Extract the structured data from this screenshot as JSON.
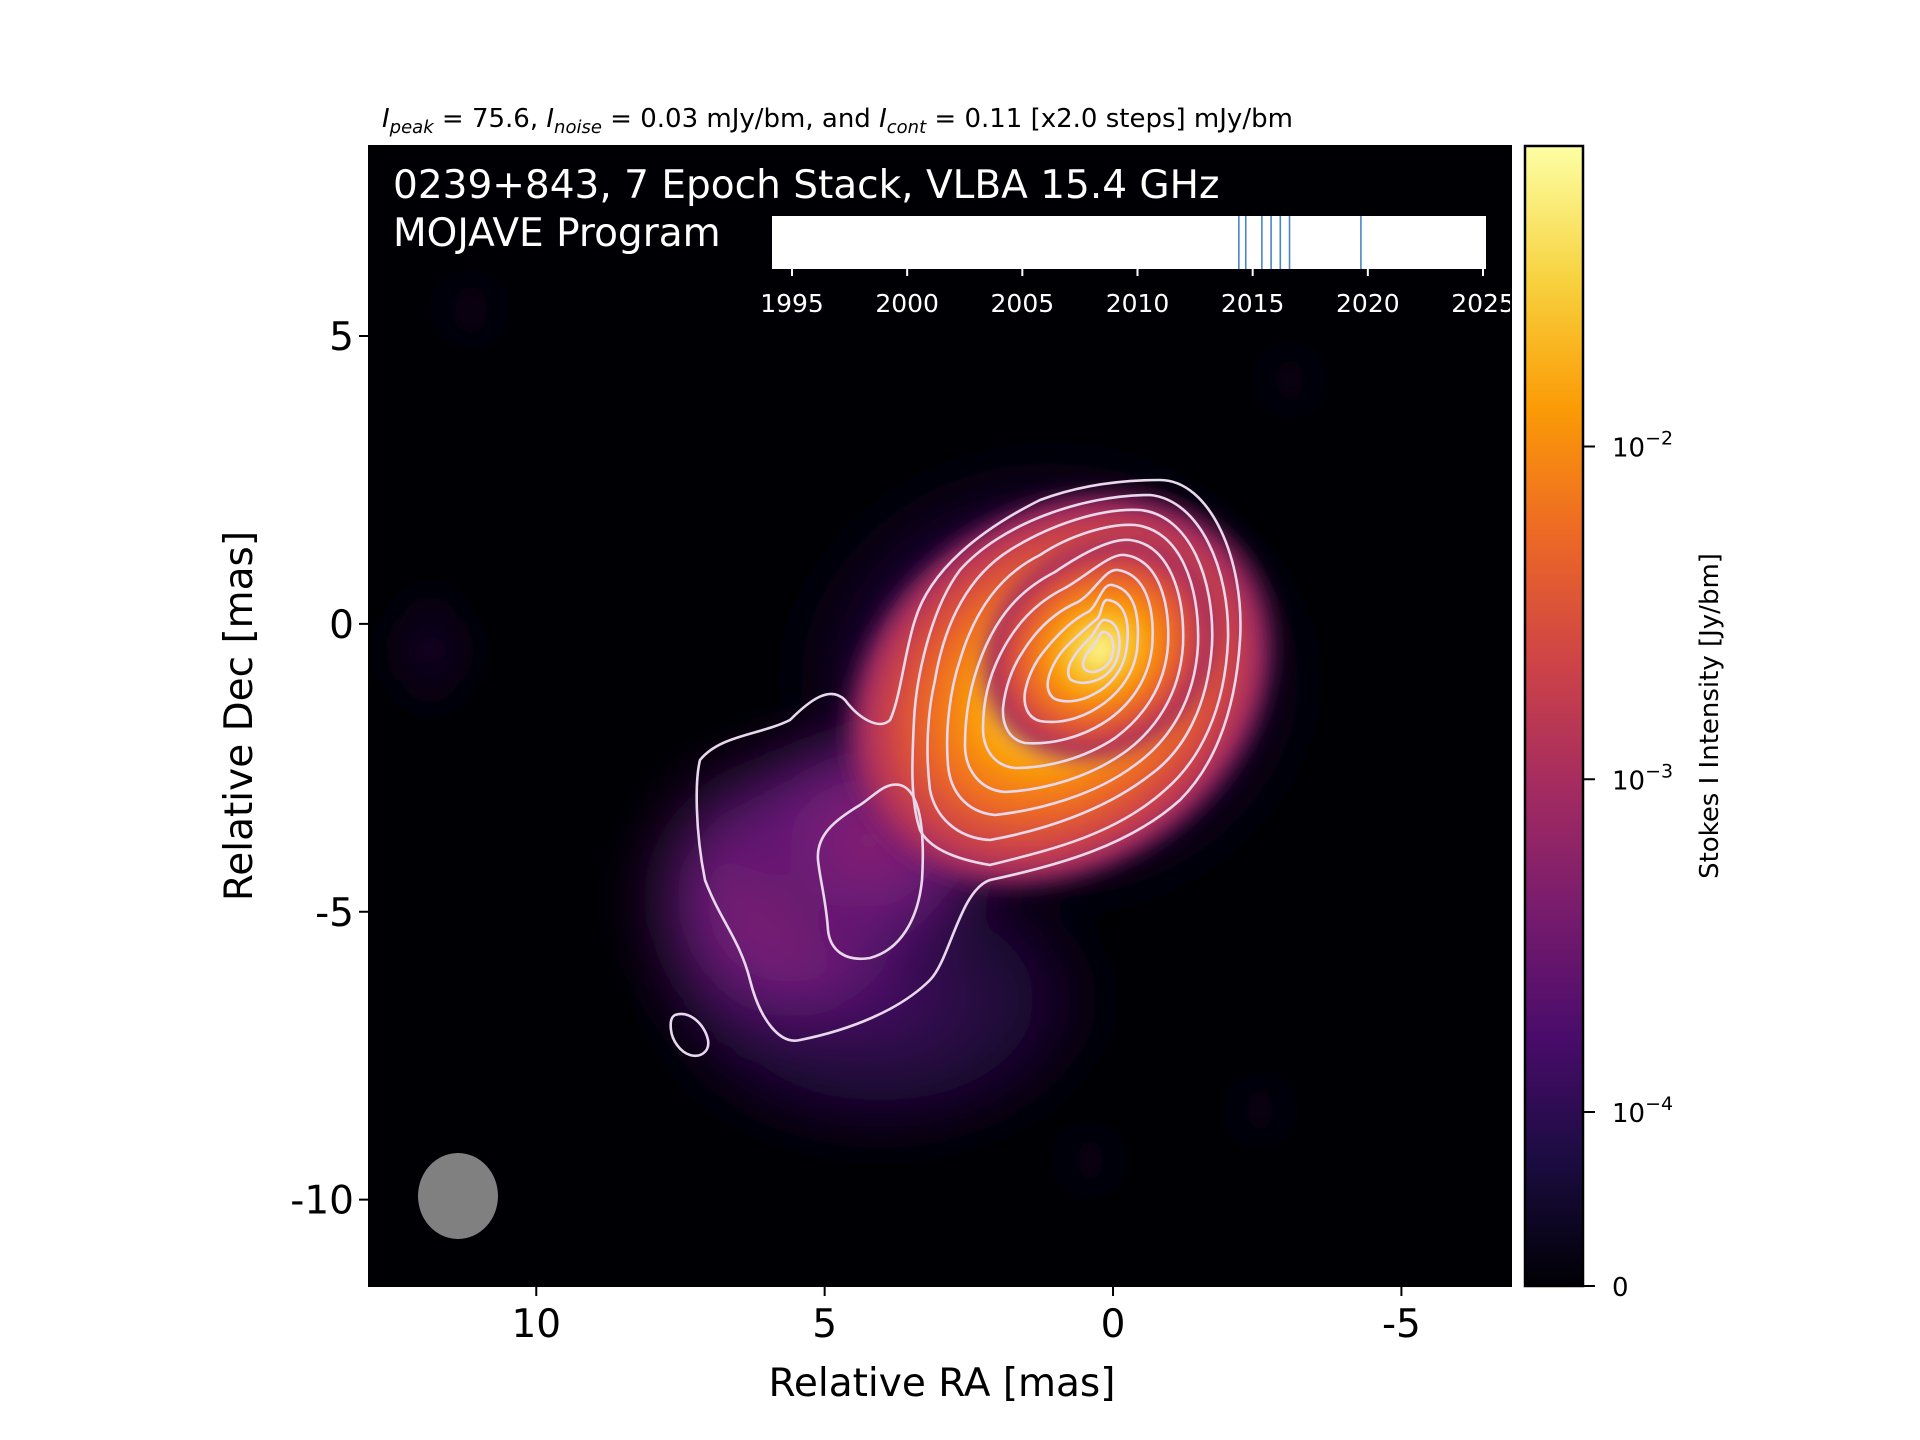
{
  "chart_data": {
    "type": "heatmap",
    "header": {
      "peak_sym": "I",
      "peak_sub": "peak",
      "peak_val": " = 75.6, ",
      "noise_sym": "I",
      "noise_sub": "noise",
      "noise_val": " = 0.03 mJy/bm, and ",
      "cont_sym": "I",
      "cont_sub": "cont",
      "cont_val": " = 0.11 [x2.0 steps] mJy/bm"
    },
    "source_title": "0239+843, 7 Epoch Stack, VLBA 15.4 GHz",
    "program": "MOJAVE Program",
    "xlabel": "Relative RA [mas]",
    "ylabel": "Relative Dec [mas]",
    "xlim": [
      12.9,
      -6.9
    ],
    "ylim": [
      -11.5,
      8.3
    ],
    "xticks": [
      10,
      5,
      0,
      -5
    ],
    "yticks": [
      5,
      0,
      -5,
      -10
    ],
    "colorbar": {
      "label": "Stokes I Intensity [Jy/bm]",
      "ticks": [
        {
          "base": "10",
          "exp": "−2",
          "value": 0.01
        },
        {
          "base": "10",
          "exp": "−3",
          "value": 0.001
        },
        {
          "base": "10",
          "exp": "−4",
          "value": 0.0001
        },
        {
          "base": "0",
          "exp": "",
          "value": 0
        }
      ],
      "colors": [
        "#000004",
        "#1b0c41",
        "#4a0c6b",
        "#781c6d",
        "#a52c60",
        "#cf4446",
        "#ed6925",
        "#fb9b06",
        "#f7d13d",
        "#fcffa4"
      ]
    },
    "epochs_timeline": {
      "range": [
        1994,
        2026
      ],
      "ticks": [
        1995,
        2000,
        2005,
        2010,
        2015,
        2020,
        2025
      ],
      "epochs": [
        2014.4,
        2014.7,
        2015.4,
        2015.8,
        2016.2,
        2016.6,
        2019.7
      ]
    },
    "beam": {
      "x": 11.3,
      "y": -10.0,
      "width": 1.4,
      "height": 1.5
    }
  }
}
